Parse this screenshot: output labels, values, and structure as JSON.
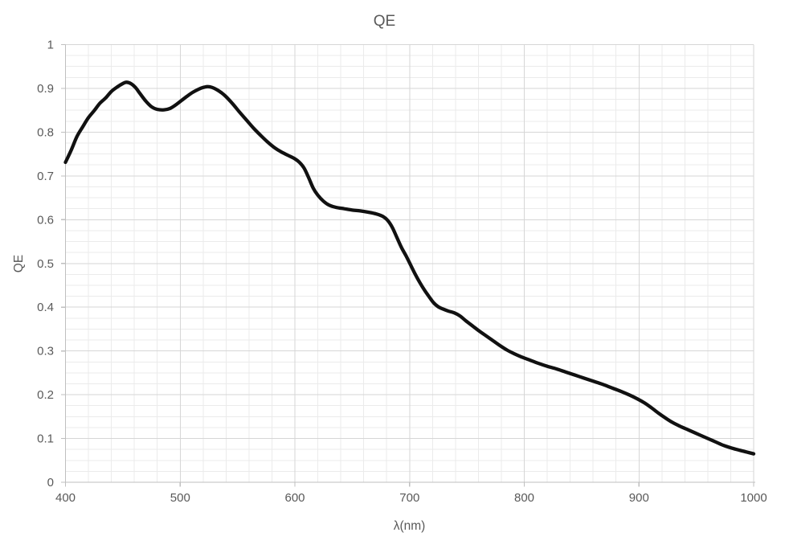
{
  "chart": {
    "title": "QE",
    "x_axis_title": "λ(nm)",
    "y_axis_title": "QE"
  },
  "style": {
    "background": "#ffffff",
    "text_color": "#595959",
    "major_grid_color": "#d6d6d6",
    "minor_grid_color": "#ebebeb",
    "axis_color": "#bfbfbf",
    "line_color": "#111111",
    "line_width": 4.3
  },
  "chart_data": {
    "type": "line",
    "title": "QE",
    "xlabel": "λ(nm)",
    "ylabel": "QE",
    "xlim": [
      400,
      1000
    ],
    "ylim": [
      0,
      1
    ],
    "x_major_step": 100,
    "x_minor_step": 20,
    "y_major_step": 0.1,
    "y_minor_step": 0.025,
    "grid": {
      "major": true,
      "minor": true
    },
    "legend": false,
    "x_tick_labels": [
      "400",
      "500",
      "600",
      "700",
      "800",
      "900",
      "1000"
    ],
    "y_tick_labels": [
      "0",
      "0.1",
      "0.2",
      "0.3",
      "0.4",
      "0.5",
      "0.6",
      "0.7",
      "0.8",
      "0.9",
      "1"
    ],
    "series": [
      {
        "name": "QE",
        "points": [
          [
            400,
            0.731
          ],
          [
            405,
            0.759
          ],
          [
            410,
            0.79
          ],
          [
            415,
            0.812
          ],
          [
            420,
            0.833
          ],
          [
            425,
            0.849
          ],
          [
            430,
            0.866
          ],
          [
            435,
            0.878
          ],
          [
            440,
            0.893
          ],
          [
            445,
            0.903
          ],
          [
            450,
            0.911
          ],
          [
            453,
            0.914
          ],
          [
            457,
            0.911
          ],
          [
            461,
            0.902
          ],
          [
            465,
            0.888
          ],
          [
            470,
            0.871
          ],
          [
            475,
            0.858
          ],
          [
            480,
            0.852
          ],
          [
            486,
            0.851
          ],
          [
            491,
            0.854
          ],
          [
            496,
            0.862
          ],
          [
            501,
            0.872
          ],
          [
            506,
            0.882
          ],
          [
            511,
            0.891
          ],
          [
            516,
            0.898
          ],
          [
            520,
            0.902
          ],
          [
            524,
            0.904
          ],
          [
            528,
            0.902
          ],
          [
            532,
            0.897
          ],
          [
            536,
            0.89
          ],
          [
            540,
            0.881
          ],
          [
            546,
            0.864
          ],
          [
            552,
            0.845
          ],
          [
            558,
            0.827
          ],
          [
            564,
            0.809
          ],
          [
            570,
            0.793
          ],
          [
            576,
            0.778
          ],
          [
            582,
            0.765
          ],
          [
            588,
            0.755
          ],
          [
            594,
            0.747
          ],
          [
            600,
            0.739
          ],
          [
            604,
            0.731
          ],
          [
            608,
            0.718
          ],
          [
            612,
            0.696
          ],
          [
            616,
            0.672
          ],
          [
            620,
            0.656
          ],
          [
            625,
            0.642
          ],
          [
            630,
            0.633
          ],
          [
            636,
            0.628
          ],
          [
            643,
            0.625
          ],
          [
            650,
            0.622
          ],
          [
            657,
            0.62
          ],
          [
            664,
            0.617
          ],
          [
            671,
            0.613
          ],
          [
            677,
            0.607
          ],
          [
            681,
            0.598
          ],
          [
            685,
            0.582
          ],
          [
            689,
            0.559
          ],
          [
            693,
            0.536
          ],
          [
            697,
            0.517
          ],
          [
            701,
            0.496
          ],
          [
            705,
            0.475
          ],
          [
            709,
            0.456
          ],
          [
            713,
            0.439
          ],
          [
            717,
            0.424
          ],
          [
            721,
            0.41
          ],
          [
            725,
            0.401
          ],
          [
            729,
            0.396
          ],
          [
            734,
            0.391
          ],
          [
            739,
            0.387
          ],
          [
            744,
            0.38
          ],
          [
            749,
            0.369
          ],
          [
            755,
            0.357
          ],
          [
            761,
            0.345
          ],
          [
            767,
            0.334
          ],
          [
            773,
            0.323
          ],
          [
            779,
            0.312
          ],
          [
            785,
            0.302
          ],
          [
            791,
            0.294
          ],
          [
            797,
            0.287
          ],
          [
            804,
            0.28
          ],
          [
            812,
            0.272
          ],
          [
            820,
            0.265
          ],
          [
            828,
            0.259
          ],
          [
            836,
            0.252
          ],
          [
            844,
            0.245
          ],
          [
            852,
            0.238
          ],
          [
            860,
            0.231
          ],
          [
            868,
            0.224
          ],
          [
            876,
            0.216
          ],
          [
            884,
            0.208
          ],
          [
            892,
            0.199
          ],
          [
            899,
            0.19
          ],
          [
            905,
            0.181
          ],
          [
            911,
            0.17
          ],
          [
            917,
            0.158
          ],
          [
            923,
            0.147
          ],
          [
            929,
            0.137
          ],
          [
            935,
            0.129
          ],
          [
            941,
            0.122
          ],
          [
            947,
            0.115
          ],
          [
            953,
            0.108
          ],
          [
            960,
            0.1
          ],
          [
            967,
            0.092
          ],
          [
            974,
            0.084
          ],
          [
            981,
            0.078
          ],
          [
            988,
            0.073
          ],
          [
            994,
            0.069
          ],
          [
            1000,
            0.065
          ]
        ]
      }
    ]
  }
}
